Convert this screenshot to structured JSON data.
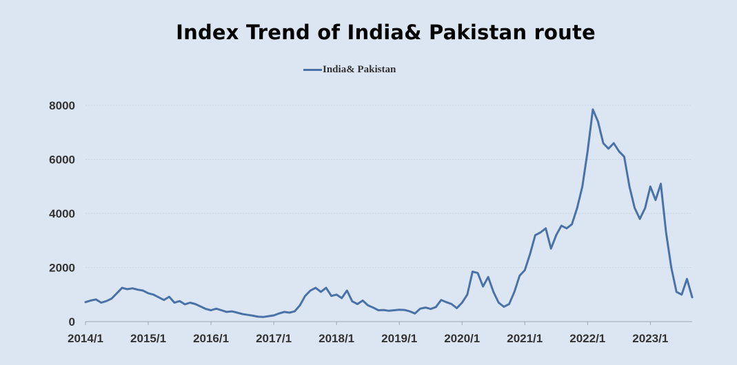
{
  "chart_data": {
    "type": "line",
    "title": "Index Trend of India& Pakistan route",
    "xlabel": "",
    "ylabel": "",
    "ylim": [
      0,
      8000
    ],
    "yticks": [
      0,
      2000,
      4000,
      6000,
      8000
    ],
    "xlim": [
      "2014-01",
      "2023-09"
    ],
    "xticks": [
      "2014/1",
      "2015/1",
      "2016/1",
      "2017/1",
      "2018/1",
      "2019/1",
      "2020/1",
      "2021/1",
      "2022/1",
      "2023/1"
    ],
    "grid": "horizontal dotted",
    "legend_position": "top-center",
    "colors": {
      "series": "#4a72a6",
      "background": "#dce6f2",
      "grid": "#c9d4e2"
    },
    "series": [
      {
        "name": "India& Pakistan",
        "points": [
          [
            "2014-01",
            720
          ],
          [
            "2014-02",
            780
          ],
          [
            "2014-03",
            820
          ],
          [
            "2014-04",
            700
          ],
          [
            "2014-05",
            760
          ],
          [
            "2014-06",
            850
          ],
          [
            "2014-07",
            1050
          ],
          [
            "2014-08",
            1250
          ],
          [
            "2014-09",
            1200
          ],
          [
            "2014-10",
            1230
          ],
          [
            "2014-11",
            1180
          ],
          [
            "2014-12",
            1150
          ],
          [
            "2015-01",
            1050
          ],
          [
            "2015-02",
            1000
          ],
          [
            "2015-03",
            900
          ],
          [
            "2015-04",
            800
          ],
          [
            "2015-05",
            920
          ],
          [
            "2015-06",
            700
          ],
          [
            "2015-07",
            760
          ],
          [
            "2015-08",
            640
          ],
          [
            "2015-09",
            700
          ],
          [
            "2015-10",
            650
          ],
          [
            "2015-11",
            560
          ],
          [
            "2015-12",
            470
          ],
          [
            "2016-01",
            420
          ],
          [
            "2016-02",
            480
          ],
          [
            "2016-03",
            420
          ],
          [
            "2016-04",
            360
          ],
          [
            "2016-05",
            380
          ],
          [
            "2016-06",
            330
          ],
          [
            "2016-07",
            280
          ],
          [
            "2016-08",
            250
          ],
          [
            "2016-09",
            220
          ],
          [
            "2016-10",
            180
          ],
          [
            "2016-11",
            170
          ],
          [
            "2016-12",
            200
          ],
          [
            "2017-01",
            230
          ],
          [
            "2017-02",
            300
          ],
          [
            "2017-03",
            360
          ],
          [
            "2017-04",
            330
          ],
          [
            "2017-05",
            380
          ],
          [
            "2017-06",
            600
          ],
          [
            "2017-07",
            950
          ],
          [
            "2017-08",
            1150
          ],
          [
            "2017-09",
            1250
          ],
          [
            "2017-10",
            1100
          ],
          [
            "2017-11",
            1250
          ],
          [
            "2017-12",
            950
          ],
          [
            "2018-01",
            1000
          ],
          [
            "2018-02",
            870
          ],
          [
            "2018-03",
            1150
          ],
          [
            "2018-04",
            750
          ],
          [
            "2018-05",
            650
          ],
          [
            "2018-06",
            780
          ],
          [
            "2018-07",
            600
          ],
          [
            "2018-08",
            520
          ],
          [
            "2018-09",
            420
          ],
          [
            "2018-10",
            430
          ],
          [
            "2018-11",
            400
          ],
          [
            "2018-12",
            420
          ],
          [
            "2019-01",
            440
          ],
          [
            "2019-02",
            430
          ],
          [
            "2019-03",
            380
          ],
          [
            "2019-04",
            300
          ],
          [
            "2019-05",
            480
          ],
          [
            "2019-06",
            520
          ],
          [
            "2019-07",
            470
          ],
          [
            "2019-08",
            540
          ],
          [
            "2019-09",
            800
          ],
          [
            "2019-10",
            720
          ],
          [
            "2019-11",
            650
          ],
          [
            "2019-12",
            500
          ],
          [
            "2020-01",
            700
          ],
          [
            "2020-02",
            1000
          ],
          [
            "2020-03",
            1850
          ],
          [
            "2020-04",
            1800
          ],
          [
            "2020-05",
            1300
          ],
          [
            "2020-06",
            1650
          ],
          [
            "2020-07",
            1100
          ],
          [
            "2020-08",
            700
          ],
          [
            "2020-09",
            550
          ],
          [
            "2020-10",
            650
          ],
          [
            "2020-11",
            1100
          ],
          [
            "2020-12",
            1700
          ],
          [
            "2021-01",
            1900
          ],
          [
            "2021-02",
            2500
          ],
          [
            "2021-03",
            3200
          ],
          [
            "2021-04",
            3300
          ],
          [
            "2021-05",
            3450
          ],
          [
            "2021-06",
            2700
          ],
          [
            "2021-07",
            3200
          ],
          [
            "2021-08",
            3550
          ],
          [
            "2021-09",
            3450
          ],
          [
            "2021-10",
            3600
          ],
          [
            "2021-11",
            4200
          ],
          [
            "2021-12",
            5000
          ],
          [
            "2022-01",
            6300
          ],
          [
            "2022-02",
            7850
          ],
          [
            "2022-03",
            7400
          ],
          [
            "2022-04",
            6600
          ],
          [
            "2022-05",
            6400
          ],
          [
            "2022-06",
            6600
          ],
          [
            "2022-07",
            6300
          ],
          [
            "2022-08",
            6100
          ],
          [
            "2022-09",
            5000
          ],
          [
            "2022-10",
            4200
          ],
          [
            "2022-11",
            3800
          ],
          [
            "2022-12",
            4200
          ],
          [
            "2023-01",
            5000
          ],
          [
            "2023-02",
            4500
          ],
          [
            "2023-03",
            5100
          ],
          [
            "2023-04",
            3300
          ],
          [
            "2023-05",
            2000
          ],
          [
            "2023-06",
            1100
          ],
          [
            "2023-07",
            1000
          ],
          [
            "2023-08",
            1580
          ],
          [
            "2023-09",
            900
          ]
        ]
      }
    ]
  }
}
